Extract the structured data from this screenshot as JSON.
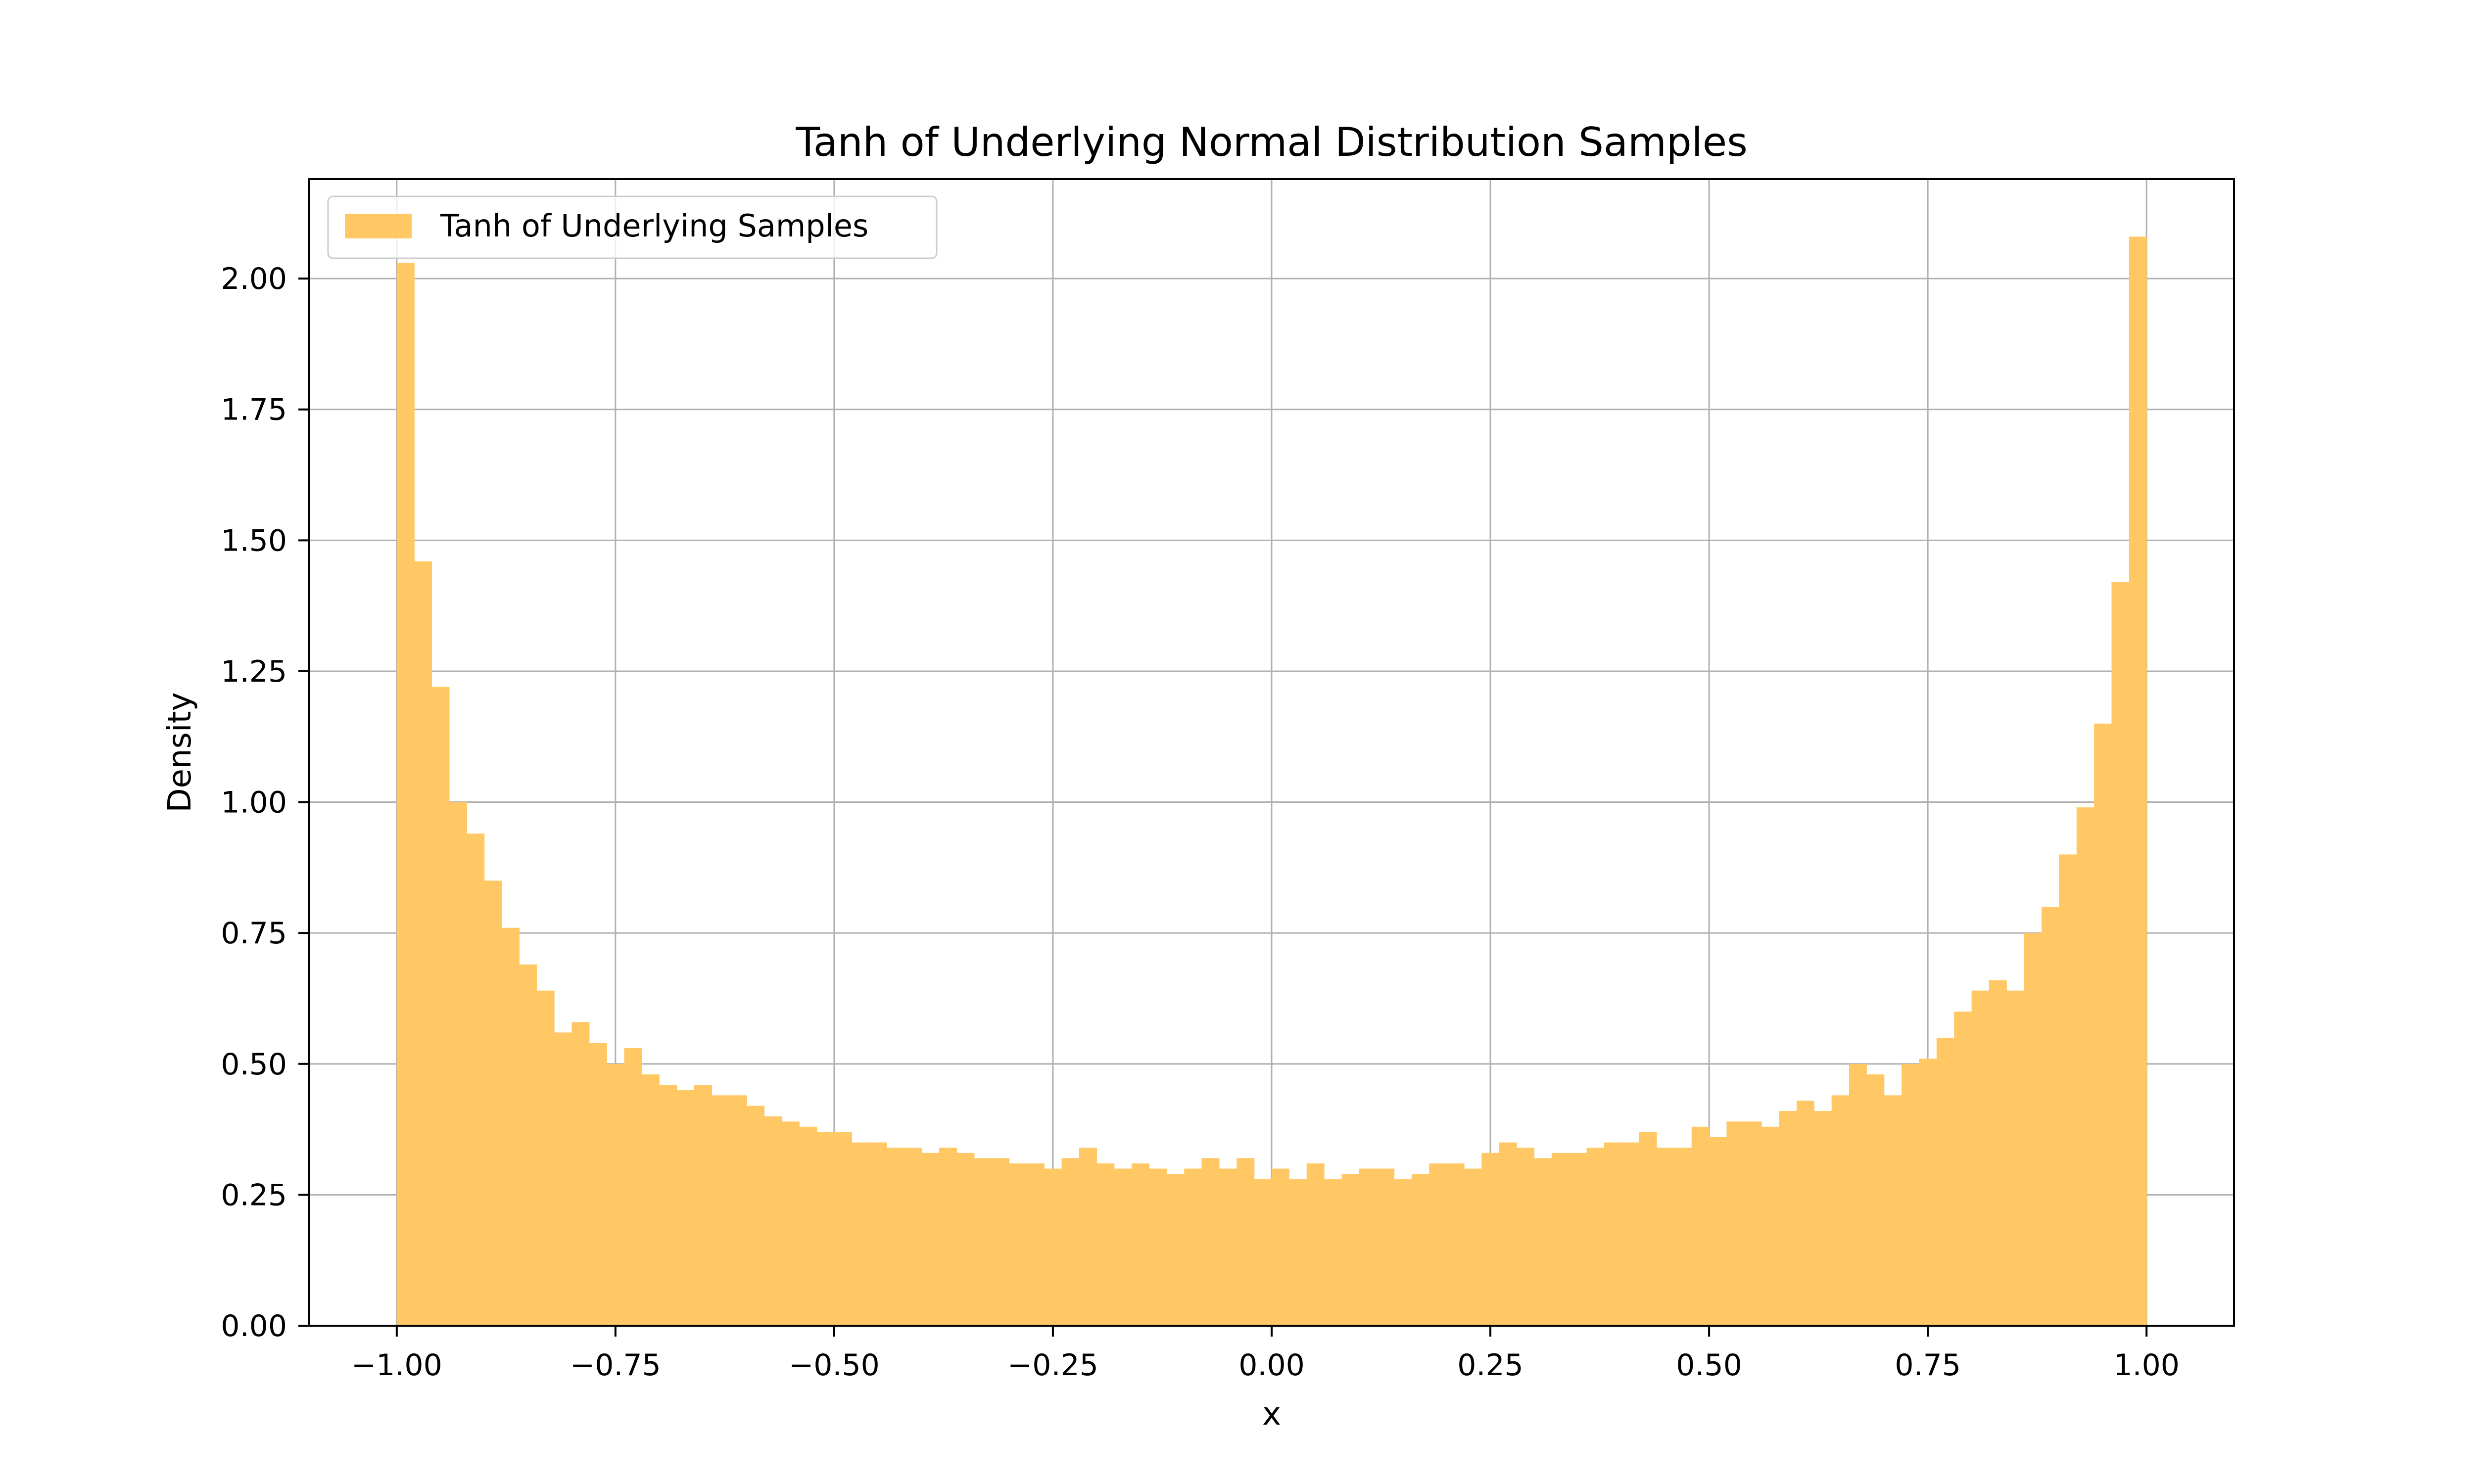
{
  "chart_data": {
    "type": "bar",
    "title": "Tanh of Underlying Normal Distribution Samples",
    "xlabel": "x",
    "ylabel": "Density",
    "xlim": [
      -1.1,
      1.1
    ],
    "ylim": [
      0,
      2.19
    ],
    "grid": true,
    "legend_position": "top-left",
    "xticks": [
      -1.0,
      -0.75,
      -0.5,
      -0.25,
      0.0,
      0.25,
      0.5,
      0.75,
      1.0
    ],
    "xtick_labels": [
      "−1.00",
      "−0.75",
      "−0.50",
      "−0.25",
      "0.00",
      "0.25",
      "0.50",
      "0.75",
      "1.00"
    ],
    "yticks": [
      0,
      0.25,
      0.5,
      0.75,
      1.0,
      1.25,
      1.5,
      1.75,
      2.0
    ],
    "ytick_labels": [
      "0.00",
      "0.25",
      "0.50",
      "0.75",
      "1.00",
      "1.25",
      "1.50",
      "1.75",
      "2.00"
    ],
    "bin_range": [
      -1.0,
      1.0
    ],
    "series": [
      {
        "name": "Tanh of Underlying Samples",
        "color": "#FFC864",
        "values": [
          2.03,
          1.46,
          1.22,
          1.0,
          0.94,
          0.85,
          0.76,
          0.69,
          0.64,
          0.56,
          0.58,
          0.54,
          0.5,
          0.53,
          0.48,
          0.46,
          0.45,
          0.46,
          0.44,
          0.44,
          0.42,
          0.4,
          0.39,
          0.38,
          0.37,
          0.37,
          0.35,
          0.35,
          0.34,
          0.34,
          0.33,
          0.34,
          0.33,
          0.32,
          0.32,
          0.31,
          0.31,
          0.3,
          0.32,
          0.34,
          0.31,
          0.3,
          0.31,
          0.3,
          0.29,
          0.3,
          0.32,
          0.3,
          0.32,
          0.28,
          0.3,
          0.28,
          0.31,
          0.28,
          0.29,
          0.3,
          0.3,
          0.28,
          0.29,
          0.31,
          0.31,
          0.3,
          0.33,
          0.35,
          0.34,
          0.32,
          0.33,
          0.33,
          0.34,
          0.35,
          0.35,
          0.37,
          0.34,
          0.34,
          0.38,
          0.36,
          0.39,
          0.39,
          0.38,
          0.41,
          0.43,
          0.41,
          0.44,
          0.5,
          0.48,
          0.44,
          0.5,
          0.51,
          0.55,
          0.6,
          0.64,
          0.66,
          0.64,
          0.75,
          0.8,
          0.9,
          0.99,
          1.15,
          1.42,
          2.08
        ]
      }
    ]
  }
}
